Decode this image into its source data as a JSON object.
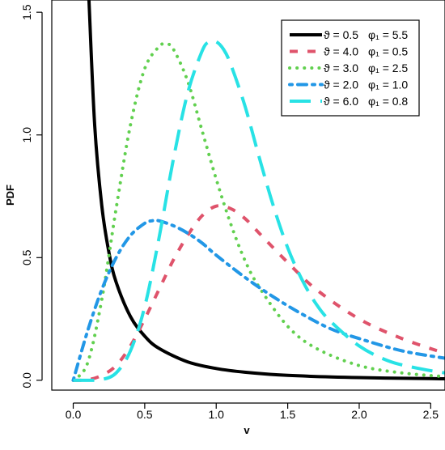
{
  "chart_data": {
    "type": "line",
    "title": "",
    "xlabel": "v",
    "ylabel": "PDF",
    "xlim": [
      -0.15,
      2.6
    ],
    "ylim": [
      -0.04,
      1.55
    ],
    "x_ticks": [
      "0.0",
      "0.5",
      "1.0",
      "1.5",
      "2.0",
      "2.5"
    ],
    "x_tick_values": [
      0.0,
      0.5,
      1.0,
      1.5,
      2.0,
      2.5
    ],
    "y_ticks": [
      "0.0",
      "0.5",
      "1.0",
      "1.5"
    ],
    "y_tick_values": [
      0.0,
      0.5,
      1.0,
      1.5
    ],
    "grid": false,
    "legend_position": "top-right",
    "series": [
      {
        "name": "ϑ = 0.5  φ₁ = 5.5",
        "legend_theta": "ϑ = 0.5",
        "legend_phi": "φ₁ = 5.5",
        "color": "#000000",
        "style": "solid",
        "x": [
          0.11,
          0.15,
          0.2,
          0.25,
          0.3,
          0.4,
          0.5,
          0.6,
          0.8,
          1.0,
          1.2,
          1.5,
          2.0,
          2.5,
          2.6
        ],
        "y": [
          1.55,
          1.04,
          0.71,
          0.52,
          0.4,
          0.26,
          0.18,
          0.13,
          0.075,
          0.048,
          0.033,
          0.02,
          0.011,
          0.007,
          0.006
        ]
      },
      {
        "name": "ϑ = 4.0  φ₁ = 0.5",
        "legend_theta": "ϑ = 4.0",
        "legend_phi": "φ₁ = 0.5",
        "color": "#DF536B",
        "style": "dashed",
        "x": [
          0.0,
          0.1,
          0.2,
          0.3,
          0.4,
          0.5,
          0.6,
          0.7,
          0.8,
          0.9,
          1.0,
          1.1,
          1.2,
          1.3,
          1.5,
          1.7,
          2.0,
          2.3,
          2.6
        ],
        "y": [
          0.0,
          0.002,
          0.02,
          0.06,
          0.14,
          0.25,
          0.37,
          0.49,
          0.59,
          0.67,
          0.71,
          0.7,
          0.66,
          0.6,
          0.48,
          0.37,
          0.25,
          0.17,
          0.11
        ]
      },
      {
        "name": "ϑ = 3.0  φ₁ = 2.5",
        "legend_theta": "ϑ = 3.0",
        "legend_phi": "φ₁ = 2.5",
        "color": "#61D04F",
        "style": "dotted",
        "x": [
          0.0,
          0.1,
          0.2,
          0.3,
          0.4,
          0.5,
          0.6,
          0.65,
          0.7,
          0.8,
          0.9,
          1.0,
          1.1,
          1.2,
          1.3,
          1.5,
          1.7,
          2.0,
          2.3,
          2.6
        ],
        "y": [
          0.0,
          0.07,
          0.33,
          0.7,
          1.04,
          1.27,
          1.36,
          1.37,
          1.35,
          1.22,
          1.02,
          0.82,
          0.64,
          0.49,
          0.38,
          0.22,
          0.13,
          0.06,
          0.03,
          0.015
        ]
      },
      {
        "name": "ϑ = 2.0  φ₁ = 1.0",
        "legend_theta": "ϑ = 2.0",
        "legend_phi": "φ₁ = 1.0",
        "color": "#2297E6",
        "style": "dashdot",
        "x": [
          0.0,
          0.1,
          0.2,
          0.3,
          0.4,
          0.5,
          0.55,
          0.6,
          0.7,
          0.8,
          0.9,
          1.0,
          1.2,
          1.4,
          1.6,
          1.8,
          2.0,
          2.3,
          2.6
        ],
        "y": [
          0.0,
          0.2,
          0.37,
          0.5,
          0.59,
          0.64,
          0.65,
          0.65,
          0.63,
          0.6,
          0.56,
          0.51,
          0.42,
          0.34,
          0.27,
          0.21,
          0.17,
          0.12,
          0.09
        ]
      },
      {
        "name": "ϑ = 6.0  φ₁ = 0.8",
        "legend_theta": "ϑ = 6.0",
        "legend_phi": "φ₁ = 0.8",
        "color": "#28E2E5",
        "style": "longdash",
        "x": [
          0.0,
          0.1,
          0.2,
          0.3,
          0.4,
          0.5,
          0.6,
          0.7,
          0.8,
          0.9,
          0.95,
          1.0,
          1.05,
          1.1,
          1.2,
          1.3,
          1.4,
          1.5,
          1.6,
          1.7,
          1.8,
          2.0,
          2.2,
          2.4,
          2.6
        ],
        "y": [
          0.0,
          0.0,
          0.003,
          0.03,
          0.12,
          0.3,
          0.58,
          0.9,
          1.17,
          1.34,
          1.38,
          1.38,
          1.35,
          1.29,
          1.12,
          0.91,
          0.71,
          0.54,
          0.41,
          0.31,
          0.24,
          0.14,
          0.08,
          0.05,
          0.03
        ]
      }
    ]
  }
}
